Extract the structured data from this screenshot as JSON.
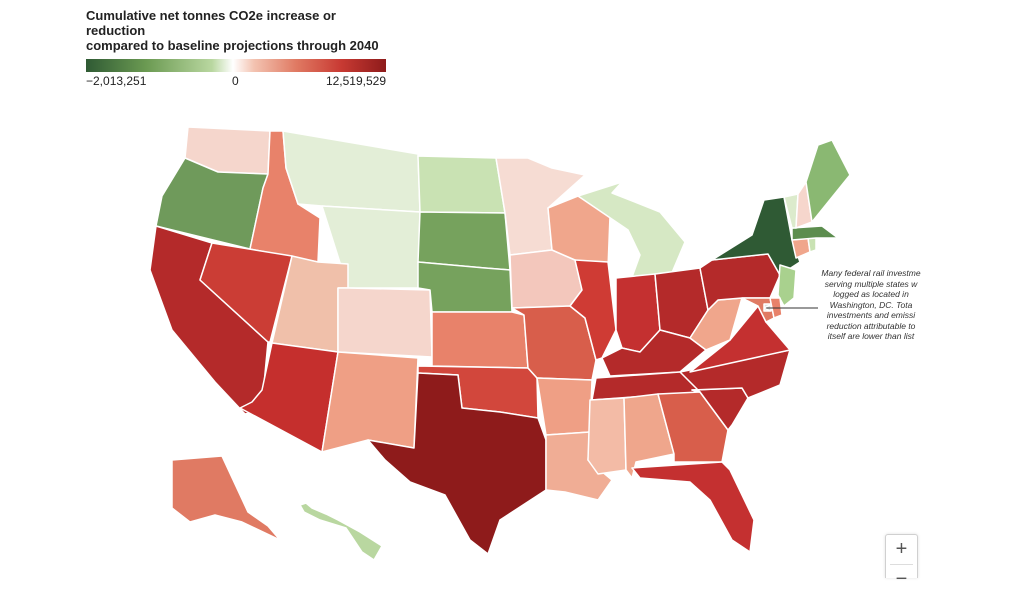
{
  "legend": {
    "title_line1": "Cumulative net tonnes CO2e increase or reduction",
    "title_line2": "compared to baseline projections through 2040",
    "min_label": "−2,013,251",
    "zero_label": "0",
    "max_label": "12,519,529",
    "min_value": -2013251,
    "max_value": 12519529,
    "colors": [
      "#2f5a34",
      "#6b9a52",
      "#b9d7a0",
      "#ffffff",
      "#f3c3b1",
      "#e07a63",
      "#c83a33",
      "#8e1b1b"
    ]
  },
  "annotation": {
    "lines": [
      "Many federal rail investme",
      "serving multiple states w",
      "logged as located in",
      "Washington, DC. Tota",
      "investments and emissi",
      "reduction attributable to",
      "itself are lower than list"
    ]
  },
  "states": [
    {
      "id": "WA",
      "fill": "#f5d6cc"
    },
    {
      "id": "OR",
      "fill": "#6f9a5b"
    },
    {
      "id": "CA",
      "fill": "#b42a2a"
    },
    {
      "id": "ID",
      "fill": "#e8826a"
    },
    {
      "id": "NV",
      "fill": "#cb3d35"
    },
    {
      "id": "MT",
      "fill": "#e3eed7"
    },
    {
      "id": "WY",
      "fill": "#e3eed7"
    },
    {
      "id": "UT",
      "fill": "#f0c0aa"
    },
    {
      "id": "AZ",
      "fill": "#c52f2d"
    },
    {
      "id": "CO",
      "fill": "#f5d6cc"
    },
    {
      "id": "NM",
      "fill": "#ef9f85"
    },
    {
      "id": "ND",
      "fill": "#c9e2b3"
    },
    {
      "id": "SD",
      "fill": "#76a25d"
    },
    {
      "id": "NE",
      "fill": "#76a25d"
    },
    {
      "id": "KS",
      "fill": "#e8826a"
    },
    {
      "id": "OK",
      "fill": "#d2473c"
    },
    {
      "id": "TX",
      "fill": "#8e1b1b"
    },
    {
      "id": "MN",
      "fill": "#f6dcd3"
    },
    {
      "id": "IA",
      "fill": "#f3c7bc"
    },
    {
      "id": "MO",
      "fill": "#d85e4b"
    },
    {
      "id": "AR",
      "fill": "#ef9f85"
    },
    {
      "id": "LA",
      "fill": "#f0ad95"
    },
    {
      "id": "WI",
      "fill": "#f0a68c"
    },
    {
      "id": "IL",
      "fill": "#cf3b34"
    },
    {
      "id": "MI",
      "fill": "#d6e8c4"
    },
    {
      "id": "IN",
      "fill": "#c43030"
    },
    {
      "id": "OH",
      "fill": "#b42a2a"
    },
    {
      "id": "KY",
      "fill": "#b42a2a"
    },
    {
      "id": "TN",
      "fill": "#b42a2a"
    },
    {
      "id": "MS",
      "fill": "#f3bba6"
    },
    {
      "id": "AL",
      "fill": "#efa68c"
    },
    {
      "id": "GA",
      "fill": "#d85e4b"
    },
    {
      "id": "FL",
      "fill": "#c43030"
    },
    {
      "id": "SC",
      "fill": "#b42a2a"
    },
    {
      "id": "NC",
      "fill": "#b42a2a"
    },
    {
      "id": "VA",
      "fill": "#c43030"
    },
    {
      "id": "WV",
      "fill": "#f0a68c"
    },
    {
      "id": "PA",
      "fill": "#b42a2a"
    },
    {
      "id": "NY",
      "fill": "#2f5a34"
    },
    {
      "id": "NJ",
      "fill": "#a9d18e"
    },
    {
      "id": "MD",
      "fill": "#e07a63"
    },
    {
      "id": "DE",
      "fill": "#e8826a"
    },
    {
      "id": "DC",
      "fill": "#e0e0e0"
    },
    {
      "id": "CT",
      "fill": "#f0a68c"
    },
    {
      "id": "RI",
      "fill": "#c9e2b3"
    },
    {
      "id": "MA",
      "fill": "#5c8d4e"
    },
    {
      "id": "VT",
      "fill": "#dcebcc"
    },
    {
      "id": "NH",
      "fill": "#f6d6cc"
    },
    {
      "id": "ME",
      "fill": "#8ab872"
    },
    {
      "id": "AK",
      "fill": "#e07a63"
    },
    {
      "id": "HI",
      "fill": "#b9d7a0"
    }
  ],
  "zoom": {
    "in_label": "+",
    "out_label": "−"
  }
}
